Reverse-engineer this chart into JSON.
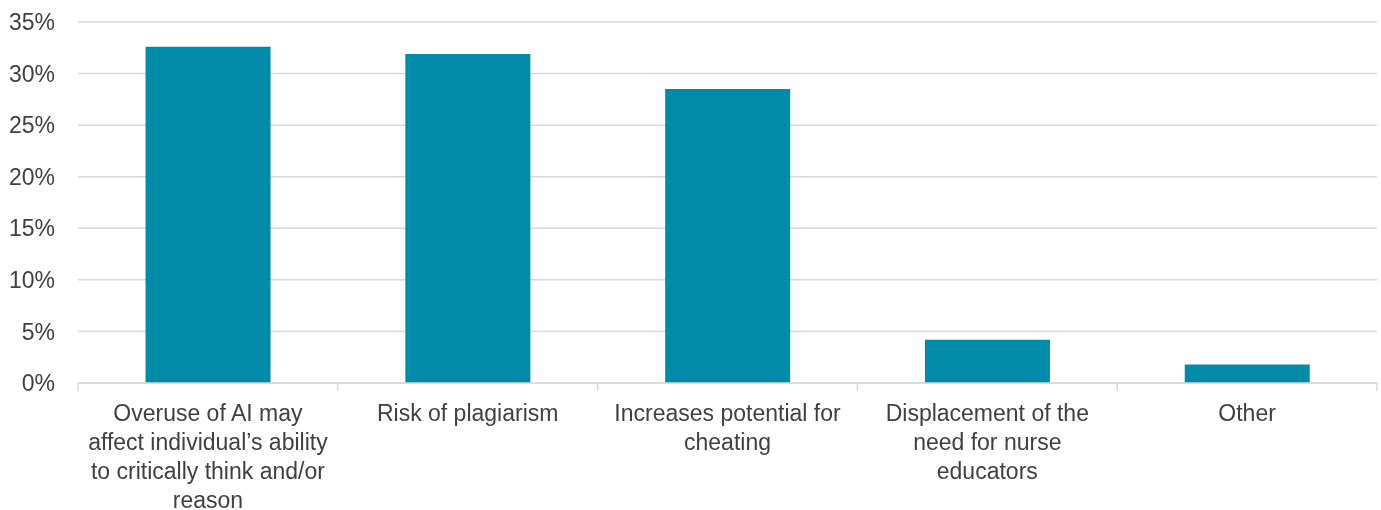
{
  "chart_data": {
    "type": "bar",
    "categories": [
      "Overuse of AI may affect individual’s ability to critically think and/or reason",
      "Risk of plagiarism",
      "Increases potential for cheating",
      "Displacement of the need for nurse educators",
      "Other"
    ],
    "values": [
      32.6,
      31.9,
      28.5,
      4.2,
      1.8
    ],
    "color": "#008ca8",
    "ylim": [
      0,
      35
    ],
    "yticks": [
      {
        "value": 0,
        "label": "0%"
      },
      {
        "value": 5,
        "label": "5%"
      },
      {
        "value": 10,
        "label": "10%"
      },
      {
        "value": 15,
        "label": "15%"
      },
      {
        "value": 20,
        "label": "20%"
      },
      {
        "value": 25,
        "label": "25%"
      },
      {
        "value": 30,
        "label": "30%"
      },
      {
        "value": 35,
        "label": "35%"
      }
    ],
    "grid": "y"
  }
}
